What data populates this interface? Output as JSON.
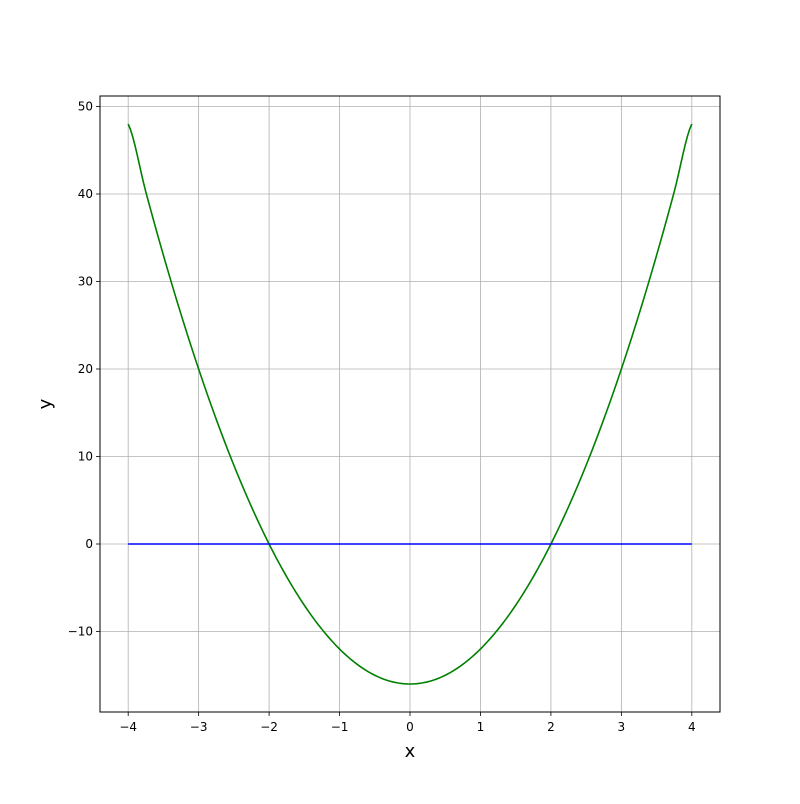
{
  "chart_data": {
    "type": "line",
    "title": "",
    "xlabel": "x",
    "ylabel": "y",
    "xlim": [
      -4.4,
      4.4
    ],
    "ylim": [
      -19.2,
      51.2
    ],
    "grid": true,
    "xticks": [
      -4,
      -3,
      -2,
      -1,
      0,
      1,
      2,
      3,
      4
    ],
    "xtick_labels": [
      "−4",
      "−3",
      "−2",
      "−1",
      "0",
      "1",
      "2",
      "3",
      "4"
    ],
    "yticks": [
      -10,
      0,
      10,
      20,
      30,
      40,
      50
    ],
    "ytick_labels": [
      "−10",
      "0",
      "10",
      "20",
      "30",
      "40",
      "50"
    ],
    "series": [
      {
        "color": "#008000",
        "x": [
          -4,
          -3.75,
          -3.5,
          -3.25,
          -3,
          -2.75,
          -2.5,
          -2.25,
          -2,
          -1.75,
          -1.5,
          -1.25,
          -1,
          -0.75,
          -0.5,
          -0.25,
          0,
          0.25,
          0.5,
          0.75,
          1,
          1.25,
          1.5,
          1.75,
          2,
          2.25,
          2.5,
          2.75,
          3,
          3.25,
          3.5,
          3.75,
          4
        ],
        "y": [
          48,
          40.25,
          33,
          26.25,
          20,
          14.25,
          9,
          4.25,
          0,
          -3.75,
          -7,
          -9.75,
          -12,
          -13.75,
          -15,
          -15.75,
          -16,
          -15.75,
          -15,
          -13.75,
          -12,
          -9.75,
          -7,
          -3.75,
          0,
          4.25,
          9,
          14.25,
          20,
          26.25,
          33,
          40.25,
          48
        ]
      },
      {
        "color": "#0000ff",
        "x": [
          -4,
          4
        ],
        "y": [
          0,
          0
        ]
      }
    ]
  }
}
